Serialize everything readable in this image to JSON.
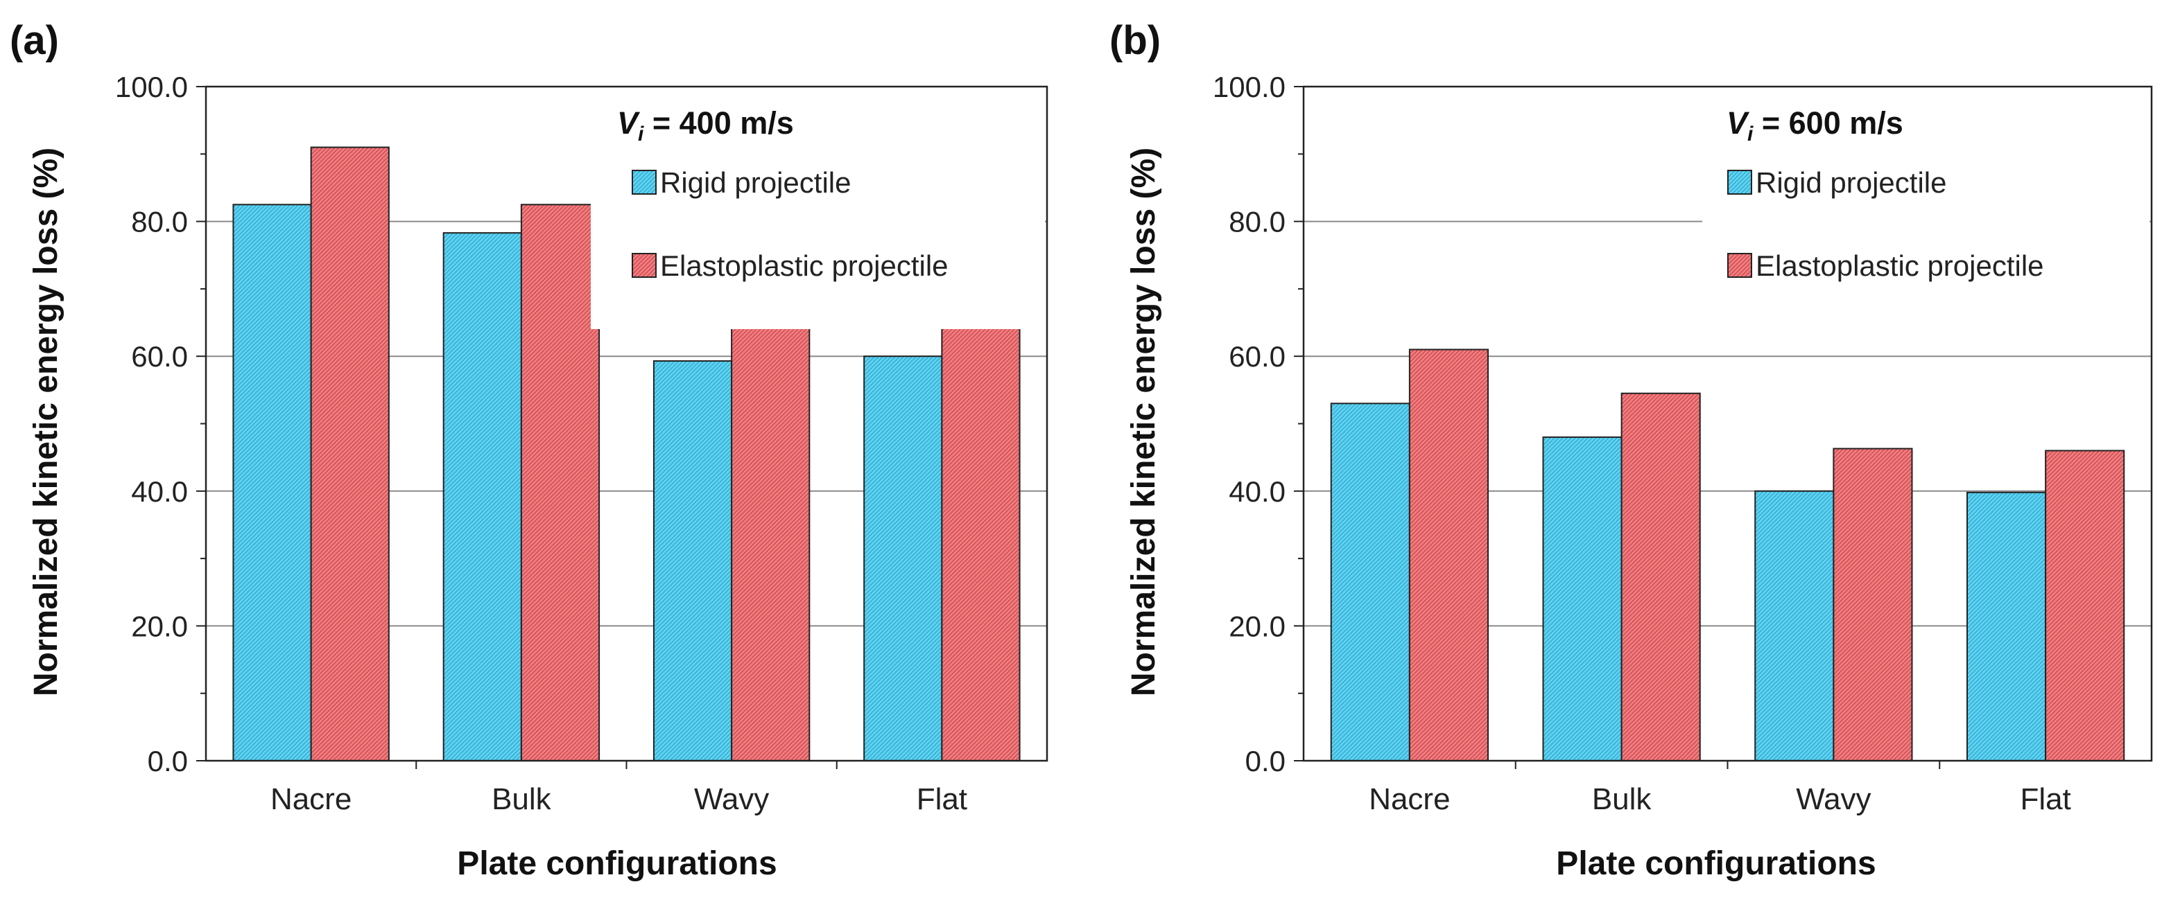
{
  "chart_data": [
    {
      "panel_label": "(a)",
      "type": "bar",
      "title_var": "V",
      "title_sub": "i",
      "title_rest": " = 400 m/s",
      "categories": [
        "Nacre",
        "Bulk",
        "Wavy",
        "Flat"
      ],
      "series": [
        {
          "name": "Rigid projectile",
          "values": [
            82.5,
            78.3,
            59.3,
            60.0
          ]
        },
        {
          "name": "Elastoplastic projectile",
          "values": [
            91.0,
            82.5,
            65.8,
            65.5
          ]
        }
      ],
      "xlabel": "Plate configurations",
      "ylabel": "Normalized kinetic energy loss (%)",
      "ylim": [
        0,
        100
      ],
      "yticks": [
        "0.0",
        "20.0",
        "40.0",
        "60.0",
        "80.0",
        "100.0"
      ],
      "grid": true,
      "legend_position": "top-right"
    },
    {
      "panel_label": "(b)",
      "type": "bar",
      "title_var": "V",
      "title_sub": "i",
      "title_rest": " = 600 m/s",
      "categories": [
        "Nacre",
        "Bulk",
        "Wavy",
        "Flat"
      ],
      "series": [
        {
          "name": "Rigid projectile",
          "values": [
            53.0,
            48.0,
            40.0,
            39.8
          ]
        },
        {
          "name": "Elastoplastic projectile",
          "values": [
            61.0,
            54.5,
            46.3,
            46.0
          ]
        }
      ],
      "xlabel": "Plate configurations",
      "ylabel": "Normalized kinetic energy loss (%)",
      "ylim": [
        0,
        100
      ],
      "yticks": [
        "0.0",
        "20.0",
        "40.0",
        "60.0",
        "80.0",
        "100.0"
      ],
      "grid": true,
      "legend_position": "top-right"
    }
  ],
  "colors": {
    "rigid_fill": "#5fd3f0",
    "rigid_hatch": "#2ea7cf",
    "elasto_fill": "#f17d80",
    "elasto_hatch": "#c9464b",
    "grid": "#8a8a8a",
    "axis": "#222222"
  }
}
